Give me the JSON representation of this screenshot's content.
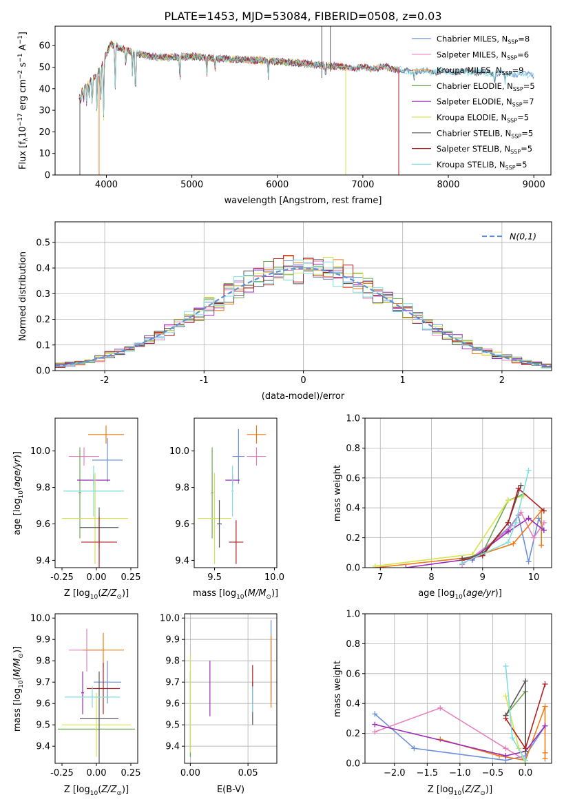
{
  "figure_title": "PLATE=1453, MJD=53084, FIBERID=0508, z=0.03",
  "colors": {
    "chabrier_miles": "#6a8fd8",
    "salpeter_miles": "#e67fbf",
    "kroupa_miles": "#f07a14",
    "chabrier_elodie": "#6aa84f",
    "salpeter_elodie": "#9b29b8",
    "kroupa_elodie": "#d7e34a",
    "chabrier_stelib": "#555555",
    "salpeter_stelib": "#b01e1e",
    "kroupa_stelib": "#7fdde0",
    "normal_curve": "#5b8fd6",
    "grid": "#b0b0b0"
  },
  "chart_data": [
    {
      "id": "spectrum",
      "type": "line",
      "xlabel": "wavelength [Angstrom, rest frame]",
      "ylabel": "Flux [f_λ10^-17 erg cm^-2 s^-1 A^-1]",
      "xlim": [
        3400,
        9200
      ],
      "ylim": [
        0,
        69
      ],
      "xticks": [
        4000,
        5000,
        6000,
        7000,
        8000,
        9000
      ],
      "yticks": [
        0,
        10,
        20,
        30,
        40,
        50,
        60
      ],
      "grid": false,
      "legend_position": "upper-right",
      "continuum": {
        "x": [
          3680,
          3750,
          3850,
          3950,
          4050,
          4150,
          4300,
          4500,
          4700,
          5000,
          5300,
          5600,
          5900,
          6200,
          6500,
          6800,
          7100,
          7300,
          7500,
          7800,
          8100,
          8400,
          8700,
          9000
        ],
        "y": [
          36,
          41,
          45,
          51,
          61,
          59,
          57,
          55,
          54.5,
          55,
          54,
          53.5,
          53,
          52,
          51,
          50,
          49.5,
          50,
          48,
          48,
          48,
          47.5,
          47,
          46.5
        ]
      },
      "absorption_lines": [
        {
          "x": 3700,
          "depth": 4
        },
        {
          "x": 3733,
          "depth": 6
        },
        {
          "x": 3770,
          "depth": 9
        },
        {
          "x": 3798,
          "depth": 8
        },
        {
          "x": 3835,
          "depth": 13
        },
        {
          "x": 3889,
          "depth": 17
        },
        {
          "x": 3933,
          "depth": 18
        },
        {
          "x": 3968,
          "depth": 26
        },
        {
          "x": 4102,
          "depth": 21
        },
        {
          "x": 4227,
          "depth": 8
        },
        {
          "x": 4305,
          "depth": 11
        },
        {
          "x": 4340,
          "depth": 22
        },
        {
          "x": 4861,
          "depth": 12
        },
        {
          "x": 5175,
          "depth": 8
        },
        {
          "x": 5270,
          "depth": 5
        },
        {
          "x": 5895,
          "depth": 8
        },
        {
          "x": 6563,
          "depth": 5
        },
        {
          "x": 7600,
          "depth": 4
        },
        {
          "x": 8542,
          "depth": 5
        },
        {
          "x": 8662,
          "depth": 5
        }
      ],
      "artifacts": [
        {
          "x": 3690,
          "y_min": 0,
          "y_max": 36,
          "series": "Chabrier STELIB"
        },
        {
          "x": 3915,
          "y_min": 0,
          "y_max": 46,
          "series": "Kroupa MILES"
        },
        {
          "x": 6520,
          "y_min": 45,
          "y_max": 69,
          "series": "Chabrier STELIB"
        },
        {
          "x": 6620,
          "y_min": 48,
          "y_max": 69,
          "series": "Chabrier STELIB"
        },
        {
          "x": 6800,
          "y_min": 0,
          "y_max": 50,
          "series": "Kroupa ELODIE"
        },
        {
          "x": 7420,
          "y_min": 0,
          "y_max": 50,
          "series": "Salpeter STELIB"
        }
      ],
      "series": [
        {
          "name": "Chabrier MILES, N_SSP=8",
          "label_main": "Chabrier MILES, N",
          "label_sub": "SSP",
          "label_end": "=8",
          "color_key": "chabrier_miles",
          "x_end": 9000
        },
        {
          "name": "Salpeter MILES, N_SSP=6",
          "label_main": "Salpeter MILES, N",
          "label_sub": "SSP",
          "label_end": "=6",
          "color_key": "salpeter_miles",
          "x_end": 7420
        },
        {
          "name": "Kroupa MILES, N_SSP=9",
          "label_main": "Kroupa MILES, N",
          "label_sub": "SSP",
          "label_end": "=9",
          "color_key": "kroupa_miles",
          "x_end": 7420
        },
        {
          "name": "Chabrier ELODIE, N_SSP=5",
          "label_main": "Chabrier ELODIE, N",
          "label_sub": "SSP",
          "label_end": "=5",
          "color_key": "chabrier_elodie",
          "x_end": 6800
        },
        {
          "name": "Salpeter ELODIE, N_SSP=7",
          "label_main": "Salpeter ELODIE, N",
          "label_sub": "SSP",
          "label_end": "=7",
          "color_key": "salpeter_elodie",
          "x_end": 6800
        },
        {
          "name": "Kroupa ELODIE, N_SSP=5",
          "label_main": "Kroupa ELODIE, N",
          "label_sub": "SSP",
          "label_end": "=5",
          "color_key": "kroupa_elodie",
          "x_end": 6800
        },
        {
          "name": "Chabrier STELIB, N_SSP=5",
          "label_main": "Chabrier STELIB, N",
          "label_sub": "SSP",
          "label_end": "=5",
          "color_key": "chabrier_stelib",
          "x_end": 8750
        },
        {
          "name": "Salpeter STELIB, N_SSP=5",
          "label_main": "Salpeter STELIB, N",
          "label_sub": "SSP",
          "label_end": "=5",
          "color_key": "salpeter_stelib",
          "x_end": 7420
        },
        {
          "name": "Kroupa STELIB, N_SSP=5",
          "label_main": "Kroupa STELIB, N",
          "label_sub": "SSP",
          "label_end": "=5",
          "color_key": "kroupa_stelib",
          "x_end": 9000
        }
      ]
    },
    {
      "id": "residuals",
      "type": "histogram",
      "xlabel": "(data-model)/error",
      "ylabel": "Normed distribution",
      "xlim": [
        -2.5,
        2.5
      ],
      "ylim": [
        0,
        0.58
      ],
      "xticks": [
        -2,
        -1,
        0,
        1,
        2
      ],
      "yticks": [
        0.0,
        0.1,
        0.2,
        0.3,
        0.4,
        0.5
      ],
      "grid": true,
      "legend_position": "upper-right",
      "legend_label": "N(0,1)",
      "bin_start": -2.5,
      "bin_width": 0.1,
      "reference_curve": "normal(0,1)",
      "series_color_keys": [
        "chabrier_miles",
        "salpeter_miles",
        "kroupa_miles",
        "chabrier_elodie",
        "salpeter_elodie",
        "kroupa_elodie",
        "chabrier_stelib",
        "salpeter_stelib",
        "kroupa_stelib"
      ]
    },
    {
      "id": "age_vs_Z",
      "type": "errorbar",
      "xlabel": "Z [log10(Z/Z_sun)]",
      "ylabel": "age  [log10(age/yr)]",
      "xlim": [
        -0.3,
        0.3
      ],
      "ylim": [
        9.36,
        10.18
      ],
      "xticks": [
        -0.25,
        0.0,
        0.25
      ],
      "yticks": [
        9.4,
        9.6,
        9.8,
        10.0
      ],
      "grid": false,
      "points": [
        {
          "color_key": "chabrier_miles",
          "x": 0.08,
          "xerr": 0.11,
          "y": 9.95,
          "yerr": 0.12
        },
        {
          "color_key": "salpeter_miles",
          "x": -0.09,
          "xerr": 0.11,
          "y": 9.97,
          "yerr": 0.05
        },
        {
          "color_key": "kroupa_miles",
          "x": 0.07,
          "xerr": 0.13,
          "y": 10.09,
          "yerr": 0.05
        },
        {
          "color_key": "chabrier_elodie",
          "x": -0.12,
          "xerr": 0.01,
          "y": 9.77,
          "yerr": 0.25
        },
        {
          "color_key": "salpeter_elodie",
          "x": -0.02,
          "xerr": 0.12,
          "y": 9.84,
          "yerr": 0.03
        },
        {
          "color_key": "kroupa_elodie",
          "x": -0.01,
          "xerr": 0.24,
          "y": 9.63,
          "yerr": 0.25
        },
        {
          "color_key": "chabrier_stelib",
          "x": 0.02,
          "xerr": 0.14,
          "y": 9.58,
          "yerr": 0.11
        },
        {
          "color_key": "salpeter_stelib",
          "x": 0.02,
          "xerr": 0.13,
          "y": 9.5,
          "yerr": 0.14
        },
        {
          "color_key": "kroupa_stelib",
          "x": -0.02,
          "xerr": 0.22,
          "y": 9.78,
          "yerr": 0.14
        }
      ]
    },
    {
      "id": "age_vs_mass",
      "type": "errorbar",
      "xlabel": "mass [log10(M/M_sun)]",
      "ylabel": "",
      "xlim": [
        9.33,
        10.02
      ],
      "ylim": [
        9.36,
        10.18
      ],
      "xticks": [
        9.5,
        10.0
      ],
      "yticks": [
        9.4,
        9.6,
        9.8,
        10.0
      ],
      "grid": false,
      "points": [
        {
          "color_key": "chabrier_miles",
          "x": 9.7,
          "xerr": 0.05,
          "y": 9.97,
          "yerr": 0.15
        },
        {
          "color_key": "salpeter_miles",
          "x": 9.85,
          "xerr": 0.08,
          "y": 9.97,
          "yerr": 0.05
        },
        {
          "color_key": "kroupa_miles",
          "x": 9.85,
          "xerr": 0.08,
          "y": 10.09,
          "yerr": 0.05
        },
        {
          "color_key": "chabrier_elodie",
          "x": 9.48,
          "xerr": 0.01,
          "y": 9.77,
          "yerr": 0.25
        },
        {
          "color_key": "salpeter_elodie",
          "x": 9.65,
          "xerr": 0.06,
          "y": 9.84,
          "yerr": 0.03
        },
        {
          "color_key": "kroupa_elodie",
          "x": 9.5,
          "xerr": 0.14,
          "y": 9.63,
          "yerr": 0.25
        },
        {
          "color_key": "chabrier_stelib",
          "x": 9.54,
          "xerr": 0.02,
          "y": 9.6,
          "yerr": 0.13
        },
        {
          "color_key": "salpeter_stelib",
          "x": 9.68,
          "xerr": 0.06,
          "y": 9.5,
          "yerr": 0.12
        },
        {
          "color_key": "kroupa_stelib",
          "x": 9.65,
          "xerr": 0.01,
          "y": 9.78,
          "yerr": 0.14
        }
      ]
    },
    {
      "id": "mass_weight_vs_age",
      "type": "line",
      "xlabel": "age  [log10(age/yr)]",
      "ylabel": "mass weight",
      "xlim": [
        6.7,
        10.35
      ],
      "ylim": [
        0,
        1
      ],
      "xticks": [
        7,
        8,
        9,
        10
      ],
      "yticks": [
        0.0,
        0.2,
        0.4,
        0.6,
        0.8,
        1.0
      ],
      "grid": true,
      "series": [
        {
          "color_key": "chabrier_miles",
          "x": [
            8.8,
            9.55,
            9.7,
            9.9,
            10.1,
            10.2
          ],
          "y": [
            0.05,
            0.28,
            0.35,
            0.04,
            0.33,
            0.25
          ]
        },
        {
          "color_key": "salpeter_miles",
          "x": [
            8.6,
            9.5,
            9.75,
            10.0,
            10.2
          ],
          "y": [
            0.02,
            0.25,
            0.37,
            0.2,
            0.3
          ]
        },
        {
          "color_key": "kroupa_miles",
          "x": [
            6.9,
            8.8,
            9.6,
            10.15,
            10.15
          ],
          "y": [
            0.0,
            0.07,
            0.16,
            0.38,
            0.15
          ]
        },
        {
          "color_key": "chabrier_elodie",
          "x": [
            8.6,
            9.0,
            9.5,
            9.8
          ],
          "y": [
            0.05,
            0.1,
            0.45,
            0.49
          ]
        },
        {
          "color_key": "salpeter_elodie",
          "x": [
            7.5,
            8.8,
            9.5,
            9.9,
            10.2
          ],
          "y": [
            0.0,
            0.06,
            0.24,
            0.33,
            0.25
          ]
        },
        {
          "color_key": "kroupa_elodie",
          "x": [
            6.9,
            8.8,
            9.5,
            9.8
          ],
          "y": [
            0.01,
            0.09,
            0.45,
            0.48
          ]
        },
        {
          "color_key": "chabrier_stelib",
          "x": [
            8.6,
            9.0,
            9.5,
            9.75
          ],
          "y": [
            0.06,
            0.09,
            0.3,
            0.55
          ]
        },
        {
          "color_key": "salpeter_stelib",
          "x": [
            8.6,
            9.0,
            9.5,
            9.7,
            10.2
          ],
          "y": [
            0.05,
            0.08,
            0.3,
            0.53,
            0.38
          ]
        },
        {
          "color_key": "kroupa_stelib",
          "x": [
            8.6,
            9.5,
            9.65,
            9.9
          ],
          "y": [
            0.03,
            0.17,
            0.3,
            0.65
          ]
        }
      ]
    },
    {
      "id": "mass_vs_Z",
      "type": "errorbar",
      "xlabel": "Z [log10(Z/Z_sun)]",
      "ylabel": "mass [log10(M/M_sun)]",
      "xlim": [
        -0.3,
        0.3
      ],
      "ylim": [
        9.32,
        10.02
      ],
      "xticks": [
        -0.25,
        0.0,
        0.25
      ],
      "yticks": [
        9.4,
        9.5,
        9.6,
        9.7,
        9.8,
        9.9,
        10.0
      ],
      "grid": false,
      "points": [
        {
          "color_key": "chabrier_miles",
          "x": 0.08,
          "xerr": 0.1,
          "y": 9.7,
          "yerr": 0.1
        },
        {
          "color_key": "salpeter_miles",
          "x": -0.07,
          "xerr": 0.13,
          "y": 9.85,
          "yerr": 0.1
        },
        {
          "color_key": "kroupa_miles",
          "x": 0.05,
          "xerr": 0.15,
          "y": 9.85,
          "yerr": 0.08
        },
        {
          "color_key": "chabrier_elodie",
          "x": 0.0,
          "xerr": 0.28,
          "y": 9.48,
          "yerr": 0.01
        },
        {
          "color_key": "salpeter_elodie",
          "x": -0.1,
          "xerr": 0.01,
          "y": 9.65,
          "yerr": 0.1
        },
        {
          "color_key": "kroupa_elodie",
          "x": 0.0,
          "xerr": 0.25,
          "y": 9.5,
          "yerr": 0.15
        },
        {
          "color_key": "chabrier_stelib",
          "x": 0.02,
          "xerr": 0.14,
          "y": 9.53,
          "yerr": 0.22
        },
        {
          "color_key": "salpeter_stelib",
          "x": 0.05,
          "xerr": 0.12,
          "y": 9.67,
          "yerr": 0.12
        },
        {
          "color_key": "kroupa_stelib",
          "x": -0.03,
          "xerr": 0.2,
          "y": 9.63,
          "yerr": 0.05
        }
      ]
    },
    {
      "id": "mass_vs_EBV",
      "type": "errorbar",
      "xlabel": "E(B-V)",
      "ylabel": "",
      "xlim": [
        -0.005,
        0.075
      ],
      "ylim": [
        9.32,
        10.02
      ],
      "xticks": [
        0.0,
        0.05
      ],
      "yticks": [
        9.4,
        9.5,
        9.6,
        9.7,
        9.8,
        9.9,
        10.0
      ],
      "grid": true,
      "points": [
        {
          "color_key": "chabrier_miles",
          "x": 0.07,
          "xerr": 0,
          "y": 9.8,
          "yerr": 0.19
        },
        {
          "color_key": "salpeter_miles",
          "x": 0.07,
          "xerr": 0,
          "y": 9.77,
          "yerr": 0.14
        },
        {
          "color_key": "kroupa_miles",
          "x": 0.07,
          "xerr": 0,
          "y": 9.75,
          "yerr": 0.17
        },
        {
          "color_key": "chabrier_elodie",
          "x": 0.0,
          "xerr": 0,
          "y": 9.55,
          "yerr": 0.2
        },
        {
          "color_key": "salpeter_elodie",
          "x": 0.017,
          "xerr": 0,
          "y": 9.67,
          "yerr": 0.13
        },
        {
          "color_key": "kroupa_elodie",
          "x": 0.0,
          "xerr": 0,
          "y": 9.6,
          "yerr": 0.23
        },
        {
          "color_key": "chabrier_stelib",
          "x": 0.054,
          "xerr": 0,
          "y": 9.6,
          "yerr": 0.1
        },
        {
          "color_key": "salpeter_stelib",
          "x": 0.054,
          "xerr": 0,
          "y": 9.69,
          "yerr": 0.09
        },
        {
          "color_key": "kroupa_stelib",
          "x": 0.054,
          "xerr": 0,
          "y": 9.62,
          "yerr": 0.06
        }
      ]
    },
    {
      "id": "mass_weight_vs_Z",
      "type": "line",
      "xlabel": "Z [log10(Z/Z_sun)]",
      "ylabel": "mass weight",
      "xlim": [
        -2.45,
        0.4
      ],
      "ylim": [
        0,
        1
      ],
      "xticks": [
        -2.0,
        -1.5,
        -1.0,
        -0.5,
        0.0
      ],
      "yticks": [
        0.0,
        0.2,
        0.4,
        0.6,
        0.8,
        1.0
      ],
      "grid": true,
      "series": [
        {
          "color_key": "chabrier_miles",
          "x": [
            -2.3,
            -1.7,
            -0.3,
            0.0,
            0.3
          ],
          "y": [
            0.33,
            0.1,
            0.02,
            0.05,
            0.25
          ]
        },
        {
          "color_key": "salpeter_miles",
          "x": [
            -2.3,
            -1.3,
            -0.3,
            0.0
          ],
          "y": [
            0.21,
            0.37,
            0.1,
            0.02
          ]
        },
        {
          "color_key": "kroupa_miles",
          "x": [
            -1.3,
            -0.4,
            0.0,
            0.3,
            0.3,
            0.3
          ],
          "y": [
            0.16,
            0.05,
            0.02,
            0.38,
            0.07,
            0.03
          ]
        },
        {
          "color_key": "chabrier_elodie",
          "x": [
            -0.3,
            0.0,
            0.0
          ],
          "y": [
            0.32,
            0.48,
            0.1
          ]
        },
        {
          "color_key": "salpeter_elodie",
          "x": [
            -2.3,
            -0.3,
            0.0,
            0.3
          ],
          "y": [
            0.26,
            0.05,
            0.08,
            0.25
          ]
        },
        {
          "color_key": "kroupa_elodie",
          "x": [
            -0.3,
            -0.1,
            0.0
          ],
          "y": [
            0.45,
            0.1,
            0.0
          ]
        },
        {
          "color_key": "chabrier_stelib",
          "x": [
            -0.3,
            0.0,
            0.0
          ],
          "y": [
            0.32,
            0.55,
            0.08
          ]
        },
        {
          "color_key": "salpeter_stelib",
          "x": [
            -0.3,
            0.0,
            0.3
          ],
          "y": [
            0.3,
            0.1,
            0.53
          ]
        },
        {
          "color_key": "kroupa_stelib",
          "x": [
            -0.3,
            -0.2,
            0.0
          ],
          "y": [
            0.65,
            0.17,
            0.02
          ]
        }
      ]
    }
  ]
}
